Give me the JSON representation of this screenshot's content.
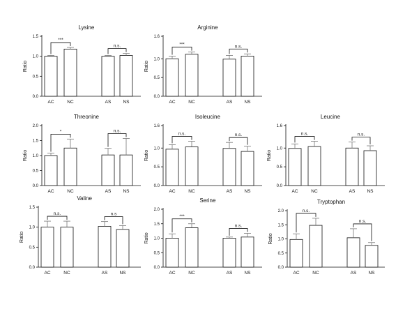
{
  "colors": {
    "axis": "#111111",
    "bar_control": "#ffffff",
    "bar_treated": "#ffffff",
    "bar_stroke_control": "#000000",
    "bar_stroke_treated": "#666666",
    "error": "#777777"
  },
  "chart_data": [
    {
      "type": "bar",
      "title": "Lysine",
      "ylabel": "Ratio",
      "ylim": [
        0,
        1.5
      ],
      "yticks": [
        "0.0",
        "0.5",
        "1.0",
        "1.5"
      ],
      "categories": [
        "AC",
        "NC",
        "AS",
        "NS"
      ],
      "values": [
        1.0,
        1.18,
        1.0,
        1.02
      ],
      "errors": [
        0.02,
        0.04,
        0.02,
        0.05
      ],
      "significance": [
        {
          "pair": [
            0,
            1
          ],
          "label": "***"
        },
        {
          "pair": [
            2,
            3
          ],
          "label": "n.s."
        }
      ]
    },
    {
      "type": "bar",
      "title": "Arginine",
      "ylabel": "Ratio",
      "ylim": [
        0,
        1.6
      ],
      "yticks": [
        "0.0",
        "0.5",
        "1.0",
        "1.6"
      ],
      "categories": [
        "AC",
        "NC",
        "AS",
        "NS"
      ],
      "values": [
        1.0,
        1.12,
        0.99,
        1.07
      ],
      "errors": [
        0.07,
        0.06,
        0.1,
        0.06
      ],
      "significance": [
        {
          "pair": [
            0,
            1
          ],
          "label": "***"
        },
        {
          "pair": [
            2,
            3
          ],
          "label": "n.s."
        }
      ]
    },
    {
      "type": "bar",
      "title": "Threonine",
      "ylabel": "Ratio",
      "ylim": [
        0,
        2.0
      ],
      "yticks": [
        "0.0",
        "0.5",
        "1.0",
        "1.5",
        "2.0"
      ],
      "categories": [
        "AC",
        "NC",
        "AS",
        "NS"
      ],
      "values": [
        1.0,
        1.25,
        1.02,
        1.02
      ],
      "errors": [
        0.08,
        0.3,
        0.22,
        0.55
      ],
      "significance": [
        {
          "pair": [
            0,
            1
          ],
          "label": "*"
        },
        {
          "pair": [
            2,
            3
          ],
          "label": "n.s."
        }
      ]
    },
    {
      "type": "bar",
      "title": "Isoleucine",
      "ylabel": "Ratio",
      "ylim": [
        0,
        1.6
      ],
      "yticks": [
        "0.0",
        "0.5",
        "1.0",
        "1.6"
      ],
      "categories": [
        "AC",
        "NC",
        "AS",
        "NS"
      ],
      "values": [
        0.97,
        1.03,
        0.99,
        0.91
      ],
      "errors": [
        0.12,
        0.15,
        0.16,
        0.14
      ],
      "significance": [
        {
          "pair": [
            0,
            1
          ],
          "label": "n.s."
        },
        {
          "pair": [
            2,
            3
          ],
          "label": "n.s."
        }
      ]
    },
    {
      "type": "bar",
      "title": "Leucine",
      "ylabel": "Ratio",
      "ylim": [
        0,
        1.6
      ],
      "yticks": [
        "0.0",
        "0.5",
        "1.0",
        "1.6"
      ],
      "categories": [
        "AC",
        "NC",
        "AS",
        "NS"
      ],
      "values": [
        0.99,
        1.04,
        1.0,
        0.93
      ],
      "errors": [
        0.12,
        0.14,
        0.16,
        0.13
      ],
      "significance": [
        {
          "pair": [
            0,
            1
          ],
          "label": "n.s."
        },
        {
          "pair": [
            2,
            3
          ],
          "label": "n.s."
        }
      ]
    },
    {
      "type": "bar",
      "title": "Valine",
      "ylabel": "Ratio",
      "ylim": [
        0,
        1.5
      ],
      "yticks": [
        "0.0",
        "0.5",
        "1.0",
        "1.5"
      ],
      "categories": [
        "AC",
        "NC",
        "AS",
        "NS"
      ],
      "values": [
        1.0,
        1.0,
        1.02,
        0.94
      ],
      "errors": [
        0.15,
        0.15,
        0.12,
        0.1
      ],
      "significance": [
        {
          "pair": [
            0,
            1
          ],
          "label": "n.s."
        },
        {
          "pair": [
            2,
            3
          ],
          "label": "n.s"
        }
      ]
    },
    {
      "type": "bar",
      "title": "Serine",
      "ylabel": "Ratio",
      "ylim": [
        0,
        2.0
      ],
      "yticks": [
        "0.0",
        "0.5",
        "1.0",
        "1.5",
        "2.0"
      ],
      "categories": [
        "AC",
        "NC",
        "AS",
        "NS"
      ],
      "values": [
        1.0,
        1.36,
        1.0,
        1.04
      ],
      "errors": [
        0.15,
        0.14,
        0.04,
        0.13
      ],
      "significance": [
        {
          "pair": [
            0,
            1
          ],
          "label": "***"
        },
        {
          "pair": [
            2,
            3
          ],
          "label": "n.s."
        }
      ]
    },
    {
      "type": "bar",
      "title": "Tryptophan",
      "ylabel": "Ratio",
      "ylim": [
        0,
        2.0
      ],
      "yticks": [
        "0.0",
        "0.5",
        "1.0",
        "1.5",
        "2.0"
      ],
      "categories": [
        "AC",
        "NC",
        "AS",
        "NS"
      ],
      "values": [
        0.98,
        1.48,
        1.04,
        0.77
      ],
      "errors": [
        0.2,
        0.25,
        0.32,
        0.1
      ],
      "significance": [
        {
          "pair": [
            0,
            1
          ],
          "label": "n.s."
        },
        {
          "pair": [
            2,
            3
          ],
          "label": "n.s."
        }
      ]
    }
  ]
}
